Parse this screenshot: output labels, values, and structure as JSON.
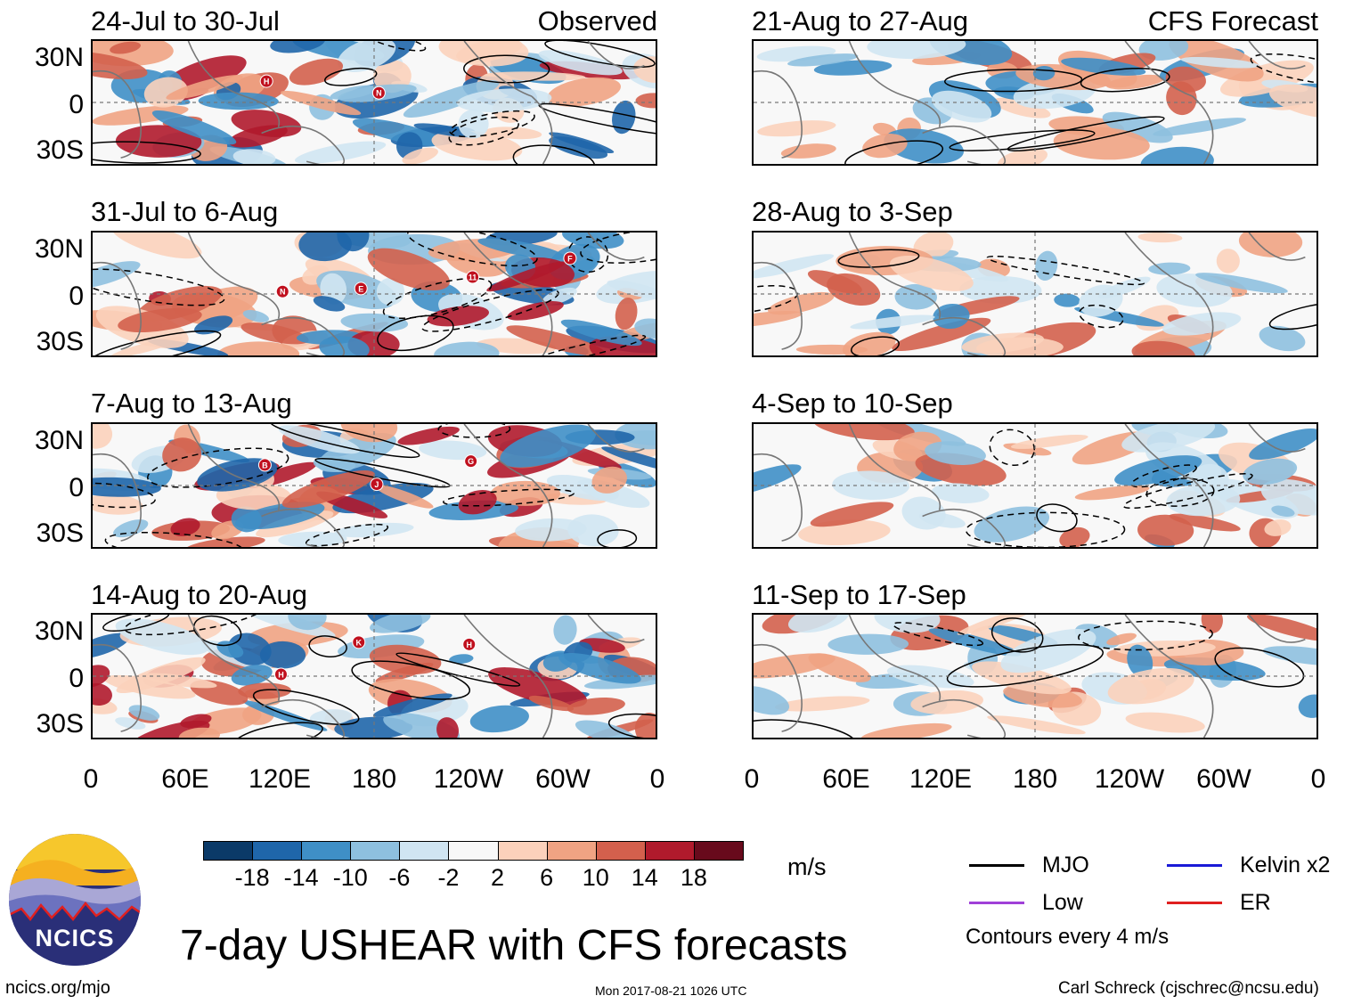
{
  "chart_data": {
    "type": "heatmap",
    "title": "7-day USHEAR with CFS forecasts",
    "unit_label": "m/s",
    "x_tick_labels": [
      "0",
      "60E",
      "120E",
      "180",
      "120W",
      "60W",
      "0"
    ],
    "y_tick_labels": [
      "30N",
      "0",
      "30S"
    ],
    "columns": [
      {
        "tag": "Observed",
        "panels": [
          {
            "title": "24-Jul to 30-Jul",
            "markers": [
              "H",
              "N"
            ]
          },
          {
            "title": "31-Jul to 6-Aug",
            "markers": [
              "N",
              "E",
              "11",
              "F"
            ]
          },
          {
            "title": "7-Aug to 13-Aug",
            "markers": [
              "B",
              "J",
              "G"
            ]
          },
          {
            "title": "14-Aug to 20-Aug",
            "markers": [
              "H",
              "K",
              "H"
            ]
          }
        ]
      },
      {
        "tag": "CFS Forecast",
        "panels": [
          {
            "title": "21-Aug to 27-Aug",
            "markers": []
          },
          {
            "title": "28-Aug to 3-Sep",
            "markers": []
          },
          {
            "title": "4-Sep to 10-Sep",
            "markers": []
          },
          {
            "title": "11-Sep to 17-Sep",
            "markers": []
          }
        ]
      }
    ],
    "colorbar": {
      "ticks": [
        "-18",
        "-14",
        "-10",
        "-6",
        "-2",
        "2",
        "6",
        "10",
        "14",
        "18"
      ],
      "colors": [
        "#0b3a68",
        "#1f66aa",
        "#3f8fc6",
        "#8ec0df",
        "#d0e5f2",
        "#f8f8f8",
        "#fbd1bb",
        "#f0a383",
        "#d3604d",
        "#b01a2c",
        "#680a1c"
      ]
    },
    "legend": [
      {
        "label": "MJO",
        "color": "#000000"
      },
      {
        "label": "Kelvin x2",
        "color": "#1a1ad6"
      },
      {
        "label": "Low",
        "color": "#a040d8"
      },
      {
        "label": "ER",
        "color": "#e02020"
      }
    ],
    "contour_note": "Contours every 4 m/s"
  },
  "footer": {
    "logo_text": "NCICS",
    "website": "ncics.org/mjo",
    "timestamp": "Mon 2017-08-21 1026 UTC",
    "credit": "Carl Schreck (cjschrec@ncsu.edu)"
  }
}
